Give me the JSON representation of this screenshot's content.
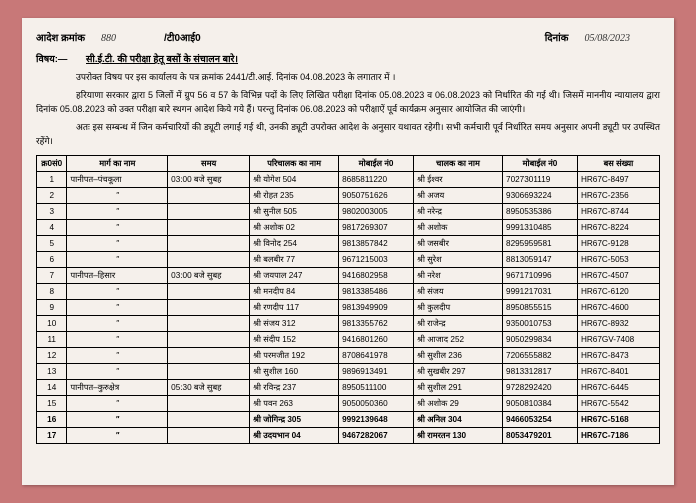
{
  "header": {
    "order_label": "आदेश क्रमांक",
    "order_no": "880",
    "mid": "/टी0आई0",
    "date_label": "दिनांक",
    "date_val": "05/08/2023"
  },
  "subject": {
    "label": "विषय:—",
    "text": "सी.ई.टी. की परीक्षा हेतू बसों के संचालन बारे।"
  },
  "paras": {
    "p1": "उपरोक्त विषय पर इस कार्यालय के पत्र क्रमांक 2441/टी.आई. दिनांक 04.08.2023 के लगातार में ।",
    "p2": "हरियाणा सरकार द्वारा 5 जिलों में ग्रुप 56 व 57 के विभिन्न पदों के लिए लिखित परीक्षा दिनांक 05.08.2023 व 06.08.2023 को निर्धारित की गई थी। जिसमें माननीय न्यायालय द्वारा दिनांक 05.08.2023 को उक्त परीक्षा बारे स्थगन आदेश किये गये हैं। परन्तु दिनांक 06.08.2023 को परीक्षाऐं पूर्व कार्यक्रम अनुसार आयोजित की जाएंगी।",
    "p3": "अतः इस सम्बन्ध में जिन कर्मचारियों की ड्यूटी लगाई गई थी, उनकी ड्यूटी उपरोक्त आदेश के अनुसार यथावत रहेगी। सभी कर्मचारी पूर्व निर्धारित समय अनुसार अपनी ड्यूटी पर उपस्थित रहेंगे।"
  },
  "thead": {
    "sn": "क्र0सं0",
    "route": "मार्ग का नाम",
    "time": "समय",
    "cond": "परिचालक का नाम",
    "mob1": "मोबाईल नं0",
    "drv": "चालक का नाम",
    "mob2": "मोबाईल नं0",
    "bus": "बस संख्या"
  },
  "rows": [
    {
      "sn": "1",
      "route": "पानीपत–पंचकूला",
      "time": "03:00 बजे सुबह",
      "cond": "श्री योगेश 504",
      "m1": "8685811220",
      "drv": "श्री ईश्वर",
      "m2": "7027301119",
      "bus": "HR67C-8497"
    },
    {
      "sn": "2",
      "route": "\"",
      "time": "",
      "cond": "श्री रोहत 235",
      "m1": "9050751626",
      "drv": "श्री अजय",
      "m2": "9306693224",
      "bus": "HR67C-2356"
    },
    {
      "sn": "3",
      "route": "\"",
      "time": "",
      "cond": "श्री सुनील 505",
      "m1": "9802003005",
      "drv": "श्री नरेन्द्र",
      "m2": "8950535386",
      "bus": "HR67C-8744"
    },
    {
      "sn": "4",
      "route": "\"",
      "time": "",
      "cond": "श्री अशोक 02",
      "m1": "9817269307",
      "drv": "श्री अशोक",
      "m2": "9991310485",
      "bus": "HR67C-8224"
    },
    {
      "sn": "5",
      "route": "\"",
      "time": "",
      "cond": "श्री विनोद 254",
      "m1": "9813857842",
      "drv": "श्री जसबीर",
      "m2": "8295959581",
      "bus": "HR67C-9128"
    },
    {
      "sn": "6",
      "route": "\"",
      "time": "",
      "cond": "श्री बलबीर 77",
      "m1": "9671215003",
      "drv": "श्री सुरेश",
      "m2": "8813059147",
      "bus": "HR67C-5053"
    },
    {
      "sn": "7",
      "route": "पानीपत–हिसार",
      "time": "03:00 बजे सुबह",
      "cond": "श्री जयपाल 247",
      "m1": "9416802958",
      "drv": "श्री नरेश",
      "m2": "9671710996",
      "bus": "HR67C-4507"
    },
    {
      "sn": "8",
      "route": "\"",
      "time": "",
      "cond": "श्री मनदीप 84",
      "m1": "9813385486",
      "drv": "श्री संजय",
      "m2": "9991217031",
      "bus": "HR67C-6120"
    },
    {
      "sn": "9",
      "route": "\"",
      "time": "",
      "cond": "श्री रणदीप 117",
      "m1": "9813949909",
      "drv": "श्री कुलदीप",
      "m2": "8950855515",
      "bus": "HR67C-4600"
    },
    {
      "sn": "10",
      "route": "\"",
      "time": "",
      "cond": "श्री संजय 312",
      "m1": "9813355762",
      "drv": "श्री राजेन्द्र",
      "m2": "9350010753",
      "bus": "HR67C-8932"
    },
    {
      "sn": "11",
      "route": "\"",
      "time": "",
      "cond": "श्री संदीप 152",
      "m1": "9416801260",
      "drv": "श्री आजाद 252",
      "m2": "9050299834",
      "bus": "HR67GV-7408"
    },
    {
      "sn": "12",
      "route": "\"",
      "time": "",
      "cond": "श्री परमजीत 192",
      "m1": "8708641978",
      "drv": "श्री सुशील 236",
      "m2": "7206555882",
      "bus": "HR67C-8473"
    },
    {
      "sn": "13",
      "route": "\"",
      "time": "",
      "cond": "श्री सुशील 160",
      "m1": "9896913491",
      "drv": "श्री सुखबीर 297",
      "m2": "9813312817",
      "bus": "HR67C-8401"
    },
    {
      "sn": "14",
      "route": "पानीपत–कुरुक्षेत्र",
      "time": "05:30 बजे सुबह",
      "cond": "श्री रविन्द्र 237",
      "m1": "8950511100",
      "drv": "श्री सुशील 291",
      "m2": "9728292420",
      "bus": "HR67C-6445"
    },
    {
      "sn": "15",
      "route": "\"",
      "time": "",
      "cond": "श्री पवन 263",
      "m1": "9050050360",
      "drv": "श्री अशोक 29",
      "m2": "9050810384",
      "bus": "HR67C-5542"
    },
    {
      "sn": "16",
      "route": "\"",
      "time": "",
      "cond": "श्री जोगिन्द्र 305",
      "m1": "9992139648",
      "drv": "श्री अनिल 304",
      "m2": "9466053254",
      "bus": "HR67C-5168",
      "bold": true
    },
    {
      "sn": "17",
      "route": "\"",
      "time": "",
      "cond": "श्री उदयभान 04",
      "m1": "9467282067",
      "drv": "श्री रामरतन 130",
      "m2": "8053479201",
      "bus": "HR67C-7186",
      "bold": true
    }
  ]
}
